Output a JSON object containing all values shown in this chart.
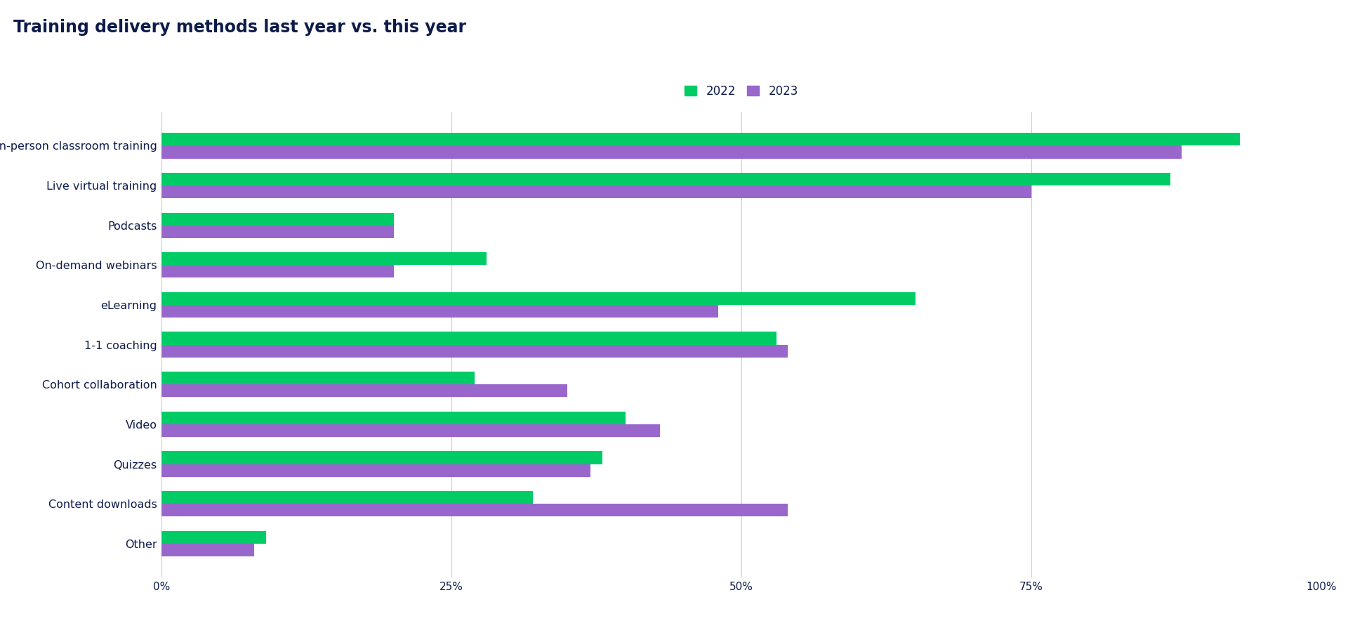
{
  "title": "Training delivery methods last year vs. this year",
  "title_color": "#0d1b4b",
  "categories": [
    "In-person classroom training",
    "Live virtual training",
    "Podcasts",
    "On-demand webinars",
    "eLearning",
    "1-1 coaching",
    "Cohort collaboration",
    "Video",
    "Quizzes",
    "Content downloads",
    "Other"
  ],
  "values_2022": [
    93,
    87,
    20,
    28,
    65,
    53,
    27,
    40,
    38,
    32,
    9
  ],
  "values_2023": [
    88,
    75,
    20,
    20,
    48,
    54,
    35,
    43,
    37,
    54,
    8
  ],
  "color_2022": "#00cc66",
  "color_2023": "#9966cc",
  "legend_labels": [
    "2022",
    "2023"
  ],
  "xlim": [
    0,
    100
  ],
  "xticks": [
    0,
    25,
    50,
    75,
    100
  ],
  "xticklabels": [
    "0%",
    "25%",
    "50%",
    "75%",
    "100%"
  ],
  "bar_height": 0.32,
  "background_color": "#ffffff",
  "grid_color": "#cccccc",
  "label_fontsize": 11.5,
  "title_fontsize": 17,
  "tick_fontsize": 11,
  "legend_fontsize": 12
}
